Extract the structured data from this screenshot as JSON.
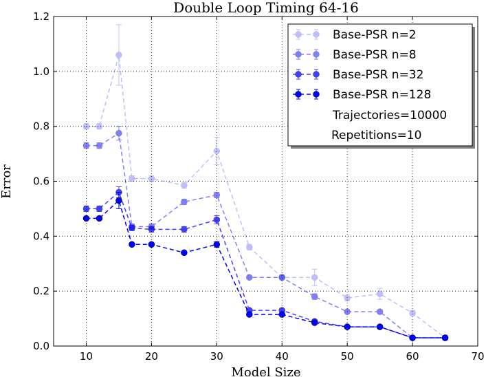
{
  "chart_data": {
    "type": "line",
    "title": "Double Loop Timing 64-16",
    "xlabel": "Model Size",
    "ylabel": "Error",
    "xlim": [
      5,
      70
    ],
    "ylim": [
      0,
      1.2
    ],
    "xticks": [
      "10",
      "20",
      "30",
      "40",
      "50",
      "60",
      "70"
    ],
    "yticks": [
      "0.0",
      "0.2",
      "0.4",
      "0.6",
      "0.8",
      "1.0",
      "1.2"
    ],
    "grid": true,
    "legend_position": "top-right",
    "series": [
      {
        "name": "Base-PSR n=2",
        "color": "#0000ff",
        "opacity": 0.25,
        "x": [
          10,
          12,
          15,
          17,
          20,
          25,
          30,
          35,
          40,
          45,
          50,
          55,
          60,
          65
        ],
        "y": [
          0.8,
          0.8,
          1.06,
          0.61,
          0.61,
          0.585,
          0.71,
          0.36,
          0.25,
          0.25,
          0.175,
          0.19,
          0.12,
          0.03
        ],
        "err": [
          0.01,
          0.01,
          0.11,
          0.01,
          0.01,
          0.01,
          0.05,
          0.01,
          0.01,
          0.03,
          0.01,
          0.02,
          0.01,
          0.01
        ]
      },
      {
        "name": "Base-PSR n=8",
        "color": "#0000ff",
        "opacity": 0.5,
        "x": [
          10,
          12,
          15,
          17,
          20,
          25,
          30,
          35,
          40,
          45,
          50,
          55,
          60,
          65
        ],
        "y": [
          0.73,
          0.73,
          0.775,
          0.435,
          0.435,
          0.525,
          0.55,
          0.25,
          0.25,
          0.18,
          0.125,
          0.125,
          0.03,
          0.03
        ],
        "err": [
          0.01,
          0.01,
          0.025,
          0.01,
          0.01,
          0.01,
          0.01,
          0.005,
          0.005,
          0.01,
          0.005,
          0.005,
          0.005,
          0.005
        ]
      },
      {
        "name": "Base-PSR n=32",
        "color": "#0000ff",
        "opacity": 0.75,
        "x": [
          10,
          12,
          15,
          17,
          20,
          25,
          30,
          35,
          40,
          45,
          50,
          55,
          60,
          65
        ],
        "y": [
          0.5,
          0.5,
          0.56,
          0.43,
          0.425,
          0.425,
          0.46,
          0.13,
          0.13,
          0.09,
          0.07,
          0.07,
          0.03,
          0.03
        ],
        "err": [
          0.01,
          0.01,
          0.02,
          0.01,
          0.01,
          0.01,
          0.015,
          0.005,
          0.005,
          0.005,
          0.005,
          0.005,
          0.005,
          0.005
        ]
      },
      {
        "name": "Base-PSR n=128",
        "color": "#0000ff",
        "opacity": 1.0,
        "x": [
          10,
          12,
          15,
          17,
          20,
          25,
          30,
          35,
          40,
          45,
          50,
          55,
          60,
          65
        ],
        "y": [
          0.465,
          0.465,
          0.53,
          0.37,
          0.37,
          0.34,
          0.37,
          0.115,
          0.115,
          0.085,
          0.07,
          0.07,
          0.03,
          0.03
        ],
        "err": [
          0.005,
          0.005,
          0.03,
          0.005,
          0.005,
          0.005,
          0.01,
          0.005,
          0.005,
          0.005,
          0.005,
          0.005,
          0.005,
          0.005
        ]
      }
    ],
    "legend_text": [
      "Trajectories=10000",
      "Repetitions=10"
    ]
  }
}
